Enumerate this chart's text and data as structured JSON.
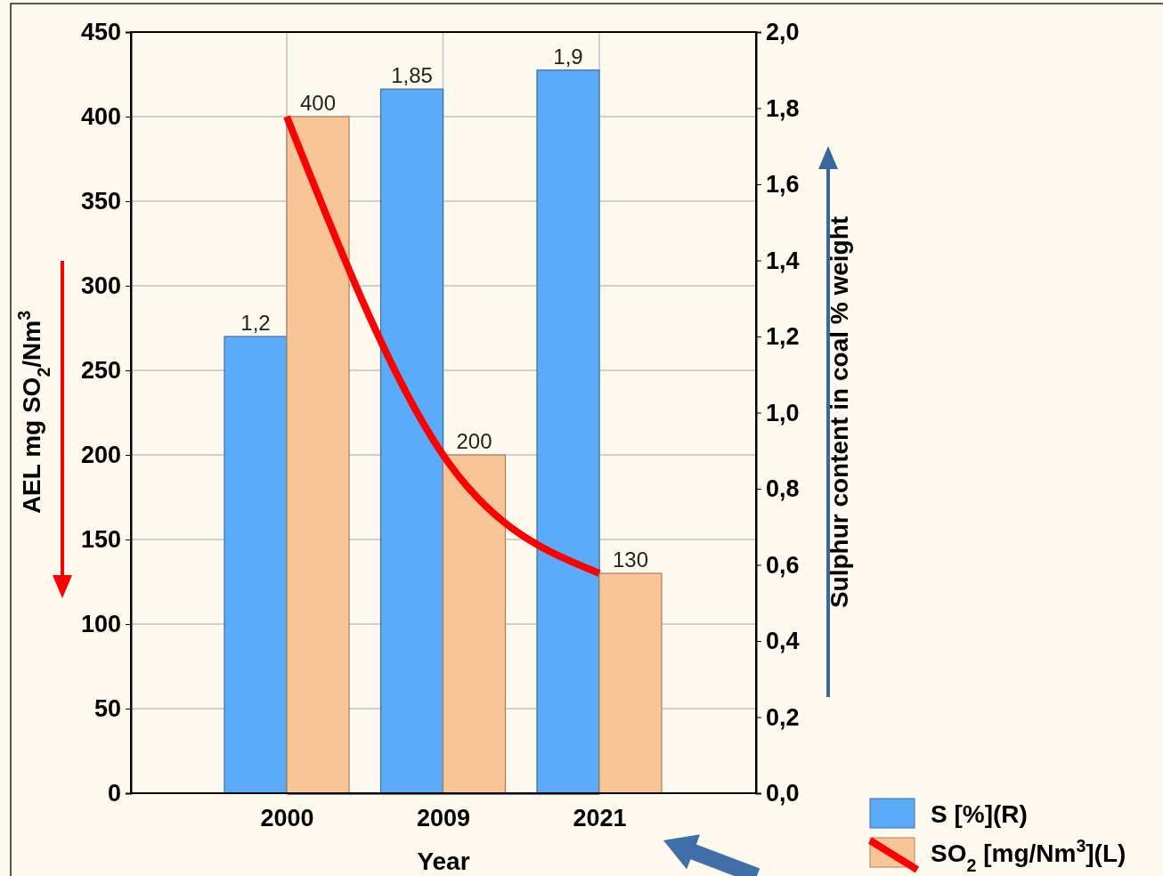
{
  "chart_data": {
    "type": "bar",
    "categories": [
      "2000",
      "2009",
      "2021"
    ],
    "series": [
      {
        "name": "S [%](R)",
        "color": "#5aabf8",
        "axis": "y2",
        "values": [
          1.2,
          1.85,
          1.9
        ],
        "value_labels": [
          "1,2",
          "1,85",
          "1,9"
        ]
      },
      {
        "name": "SO$_{2}$ [mg/Nm$^{3}$](L)",
        "color": "#f9c496",
        "values": [
          400,
          200,
          130
        ],
        "value_labels": [
          "400",
          "200",
          "130"
        ]
      },
      {
        "type": "line",
        "color": "#ff0000",
        "values": [
          400,
          200,
          130
        ]
      }
    ],
    "xlabel": "Year",
    "ylabel": "AEL mg SO$_{2}$/Nm$^{3}$",
    "y2label": "Sulphur content in coal % weight",
    "ylim": [
      0,
      450
    ],
    "yticks": [
      0,
      50,
      100,
      150,
      200,
      250,
      300,
      350,
      400,
      450
    ],
    "y2lim": [
      0,
      2
    ],
    "y2ticks": [
      {
        "value": 0,
        "label": "0,0"
      },
      {
        "value": 0.2,
        "label": "0,2"
      },
      {
        "value": 0.4,
        "label": "0,4"
      },
      {
        "value": 0.6,
        "label": "0,6"
      },
      {
        "value": 0.8,
        "label": "0,8"
      },
      {
        "value": 1,
        "label": "1,0"
      },
      {
        "value": 1.2,
        "label": "1,2"
      },
      {
        "value": 1.4,
        "label": "1,4"
      },
      {
        "value": 1.6,
        "label": "1,6"
      },
      {
        "value": 1.8,
        "label": "1,8"
      },
      {
        "value": 2,
        "label": "2,0"
      }
    ],
    "grid": true,
    "legend": "bottom right"
  }
}
